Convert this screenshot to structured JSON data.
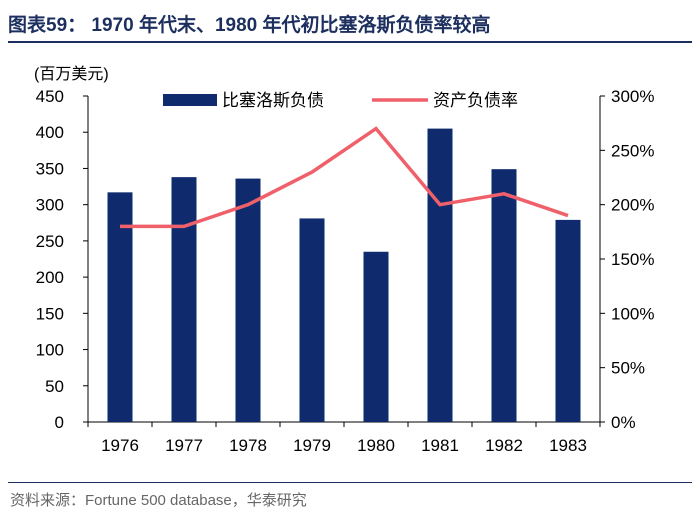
{
  "title": "图表59：  1970 年代末、1980 年代初比塞洛斯负债率较高",
  "source": "资料来源：Fortune 500 database，华泰研究",
  "colors": {
    "bar": "#0f2b6e",
    "line": "#f0606a",
    "title": "#1c2f5e"
  },
  "chart_data": {
    "type": "bar+line",
    "title": "1970 年代末、1980 年代初比塞洛斯负债率较高",
    "unit_label": "(百万美元)",
    "categories": [
      "1976",
      "1977",
      "1978",
      "1979",
      "1980",
      "1981",
      "1982",
      "1983"
    ],
    "series": [
      {
        "name": "比塞洛斯负债",
        "type": "bar",
        "axis": "left",
        "values": [
          317,
          338,
          336,
          281,
          235,
          405,
          349,
          279
        ]
      },
      {
        "name": "资产负债率",
        "type": "line",
        "axis": "right",
        "values": [
          180,
          180,
          200,
          230,
          270,
          200,
          210,
          190
        ]
      }
    ],
    "y_left": {
      "min": 0,
      "max": 450,
      "step": 50,
      "ticks": [
        "0",
        "50",
        "100",
        "150",
        "200",
        "250",
        "300",
        "350",
        "400",
        "450"
      ]
    },
    "y_right": {
      "min": 0,
      "max": 300,
      "step": 50,
      "ticks": [
        "0%",
        "50%",
        "100%",
        "150%",
        "200%",
        "250%",
        "300%"
      ]
    },
    "legend_position": "top",
    "grid": false
  }
}
